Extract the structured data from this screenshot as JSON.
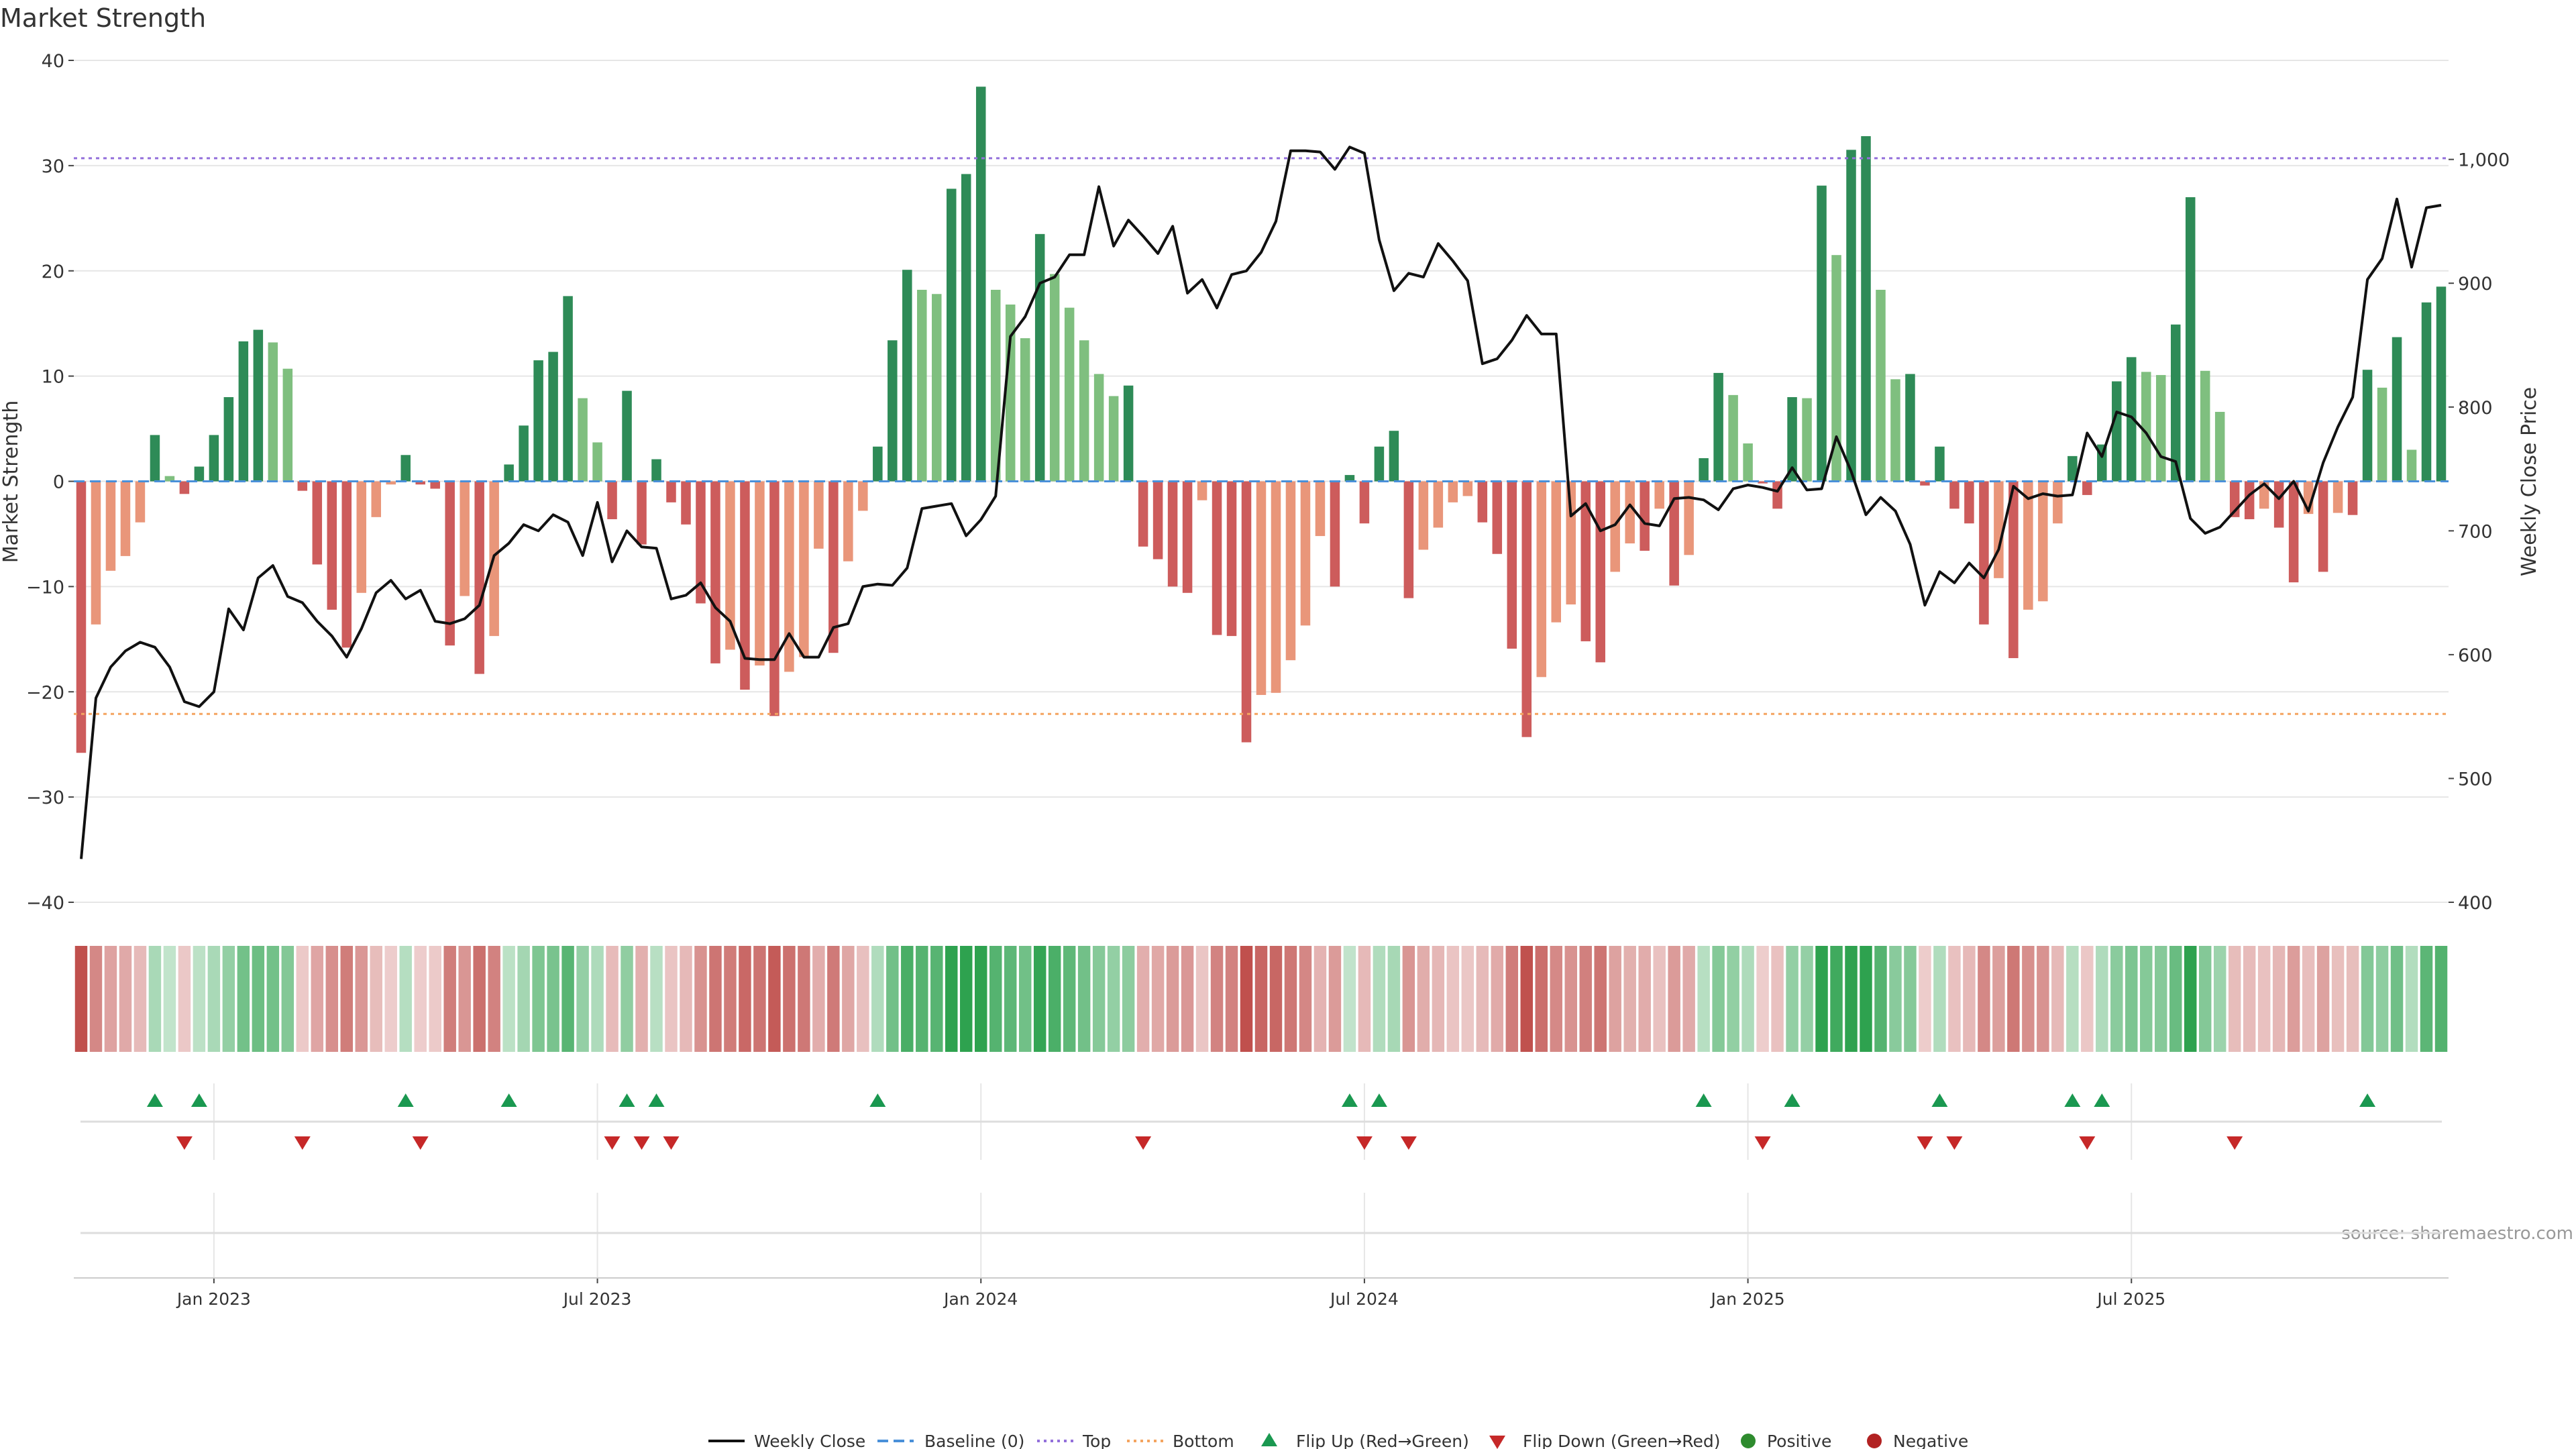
{
  "chart_data": {
    "type": "bar",
    "title": "Market Strength",
    "ylabel_left": "Market Strength",
    "ylabel_right": "Weekly Close Price",
    "source": "source: sharemaestro.com",
    "ylim_left": [
      -40,
      40
    ],
    "ylim_right": [
      400,
      1080
    ],
    "yticks_left": [
      -40,
      -30,
      -20,
      -10,
      0,
      10,
      20,
      30,
      40
    ],
    "ytick_labels_left": [
      "−40",
      "−30",
      "−20",
      "−10",
      "0",
      "10",
      "20",
      "30",
      "40"
    ],
    "yticks_right": [
      400,
      500,
      600,
      700,
      800,
      900,
      1000
    ],
    "ytick_labels_right": [
      "400",
      "500",
      "600",
      "700",
      "800",
      "900",
      "1,000"
    ],
    "x_tick_index": [
      9,
      35,
      61,
      87,
      113,
      139
    ],
    "x_tick_labels": [
      "Jan 2023",
      "Jul 2023",
      "Jan 2024",
      "Jul 2024",
      "Jan 2025",
      "Jul 2025"
    ],
    "top_line": 30.7,
    "bottom_line": -22.1,
    "strength": [
      -25.8,
      -13.6,
      -8.5,
      -7.1,
      -3.9,
      4.4,
      0.5,
      -1.2,
      1.4,
      4.4,
      8.0,
      13.3,
      14.4,
      13.2,
      10.7,
      -0.9,
      -7.9,
      -12.2,
      -15.8,
      -10.6,
      -3.4,
      -0.3,
      2.5,
      -0.3,
      -0.7,
      -15.6,
      -10.9,
      -18.3,
      -14.7,
      1.6,
      5.3,
      11.5,
      12.3,
      17.6,
      7.9,
      3.7,
      -3.6,
      8.6,
      -6.0,
      2.1,
      -2.0,
      -4.1,
      -11.6,
      -17.3,
      -16.0,
      -19.8,
      -17.5,
      -22.3,
      -18.1,
      -16.7,
      -6.4,
      -16.3,
      -7.6,
      -2.8,
      3.3,
      13.4,
      20.1,
      18.2,
      17.8,
      27.8,
      29.2,
      37.5,
      18.2,
      16.8,
      13.6,
      23.5,
      19.7,
      16.5,
      13.4,
      10.2,
      8.1,
      9.1,
      -6.2,
      -7.4,
      -10.0,
      -10.6,
      -1.8,
      -14.6,
      -14.7,
      -24.8,
      -20.3,
      -20.1,
      -17.0,
      -13.7,
      -5.2,
      -10.0,
      0.6,
      -4.0,
      3.3,
      4.8,
      -11.1,
      -6.5,
      -4.4,
      -2.0,
      -1.4,
      -3.9,
      -6.9,
      -15.9,
      -24.3,
      -18.6,
      -13.4,
      -11.7,
      -15.2,
      -17.2,
      -8.6,
      -5.9,
      -6.6,
      -2.6,
      -9.9,
      -7.0,
      2.2,
      10.3,
      8.2,
      3.6,
      -0.2,
      -2.6,
      8.0,
      7.9,
      28.1,
      21.5,
      31.5,
      32.8,
      18.2,
      9.7,
      10.2,
      -0.4,
      3.3,
      -2.6,
      -4.0,
      -13.6,
      -9.2,
      -16.8,
      -12.2,
      -11.4,
      -4.0,
      2.4,
      -1.3,
      3.5,
      9.5,
      11.8,
      10.4,
      10.1,
      14.9,
      27.0,
      10.5,
      6.6,
      -3.4,
      -3.6,
      -2.6,
      -4.4,
      -9.6,
      -3.1,
      -8.6,
      -3.0,
      -3.2,
      10.6,
      8.9,
      13.7,
      3.0,
      17.0,
      18.5
    ],
    "weekly_close": [
      435,
      565,
      590,
      603,
      610,
      606,
      590,
      562,
      558,
      570,
      637,
      620,
      662,
      672,
      647,
      642,
      627,
      615,
      598,
      621,
      650,
      660,
      645,
      652,
      627,
      625,
      629,
      640,
      680,
      690,
      705,
      700,
      713,
      707,
      680,
      723,
      675,
      700,
      687,
      686,
      645,
      648,
      658,
      638,
      627,
      597,
      596,
      596,
      617,
      598,
      598,
      622,
      625,
      655,
      657,
      656,
      670,
      718,
      720,
      722,
      696,
      709,
      728,
      857,
      873,
      900,
      905,
      923,
      923,
      978,
      930,
      951,
      938,
      924,
      946,
      892,
      903,
      880,
      907,
      910,
      925,
      950,
      1007,
      1007,
      1006,
      992,
      1010,
      1005,
      935,
      894,
      908,
      905,
      932,
      918,
      902,
      835,
      839,
      854,
      874,
      859,
      859,
      712,
      722,
      700,
      705,
      721,
      706,
      704,
      726,
      727,
      725,
      717,
      734,
      737,
      735,
      732,
      751,
      733,
      734,
      776,
      748,
      713,
      727,
      716,
      689,
      640,
      667,
      658,
      674,
      662,
      685,
      736,
      726,
      730,
      728,
      729,
      779,
      760,
      796,
      792,
      779,
      760,
      756,
      710,
      698,
      703,
      716,
      729,
      738,
      726,
      740,
      716,
      755,
      784,
      808,
      903,
      920,
      968,
      913,
      961,
      963
    ]
  },
  "legend": {
    "weekly_close": "Weekly Close",
    "baseline": "Baseline (0)",
    "top": "Top",
    "bottom": "Bottom",
    "flip_up": "Flip Up (Red→Green)",
    "flip_down": "Flip Down (Green→Red)",
    "positive": "Positive",
    "negative": "Negative"
  },
  "colors": {
    "positive_strong": "#2e8b57",
    "positive_weak": "#7fbf7f",
    "negative_strong": "#cd5c5c",
    "negative_weak": "#e9967a",
    "price_line": "#111111",
    "baseline": "#4a90d9",
    "top_line": "#9370db",
    "bottom_line": "#f4a460",
    "flip_up": "#1a9850",
    "flip_down": "#c62828",
    "positive_dot": "#2e8b2e",
    "negative_dot": "#b22222",
    "grid": "#e6e6e6",
    "axis_text": "#333333"
  }
}
